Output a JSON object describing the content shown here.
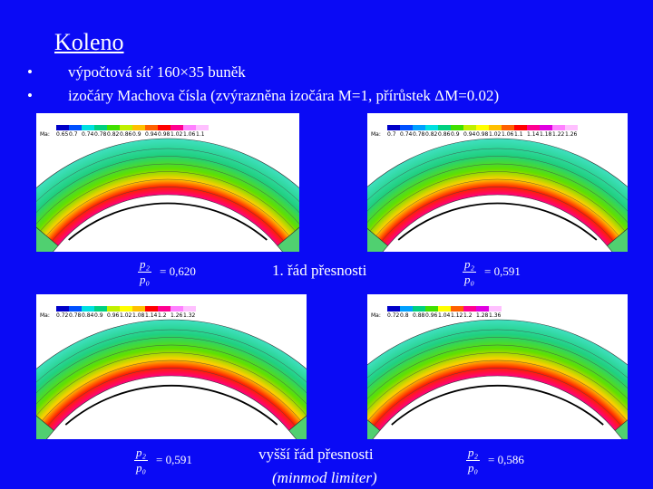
{
  "title": "Koleno",
  "bullets": [
    "výpočtová síť 160×35 buněk",
    "izočáry Machova čísla (zvýrazněna izočára M=1, přírůstek ΔM=0.02)"
  ],
  "panels": [
    {
      "colorbar_label": "Ma:",
      "colorbar_ticks": [
        "0.65",
        "0.7",
        "0.74",
        "0.78",
        "0.82",
        "0.86",
        "0.9",
        "0.94",
        "0.98",
        "1.02",
        "1.06",
        "1.1"
      ]
    },
    {
      "colorbar_label": "Ma:",
      "colorbar_ticks": [
        "0.7",
        "0.74",
        "0.78",
        "0.82",
        "0.86",
        "0.9",
        "0.94",
        "0.98",
        "1.02",
        "1.06",
        "1.1",
        "1.14",
        "1.18",
        "1.22",
        "1.26"
      ]
    },
    {
      "colorbar_label": "Ma:",
      "colorbar_ticks": [
        "0.72",
        "0.78",
        "0.84",
        "0.9",
        "0.96",
        "1.02",
        "1.08",
        "1.14",
        "1.2",
        "1.26",
        "1.32"
      ]
    },
    {
      "colorbar_label": "Ma:",
      "colorbar_ticks": [
        "0.72",
        "0.8",
        "0.88",
        "0.96",
        "1.04",
        "1.12",
        "1.2",
        "1.28",
        "1.36"
      ]
    }
  ],
  "ratios": [
    {
      "numerator": "p₂",
      "denominator": "p₀",
      "value": "= 0,620"
    },
    {
      "numerator": "p₂",
      "denominator": "p₀",
      "value": "= 0,591"
    },
    {
      "numerator": "p₂",
      "denominator": "p₀",
      "value": "= 0,591"
    },
    {
      "numerator": "p₂",
      "denominator": "p₀",
      "value": "= 0,586"
    }
  ],
  "captions": {
    "first_order": "1. řád přesnosti",
    "higher_order": "vyšší řád přesnosti",
    "limiter": "(minmod limiter)"
  }
}
